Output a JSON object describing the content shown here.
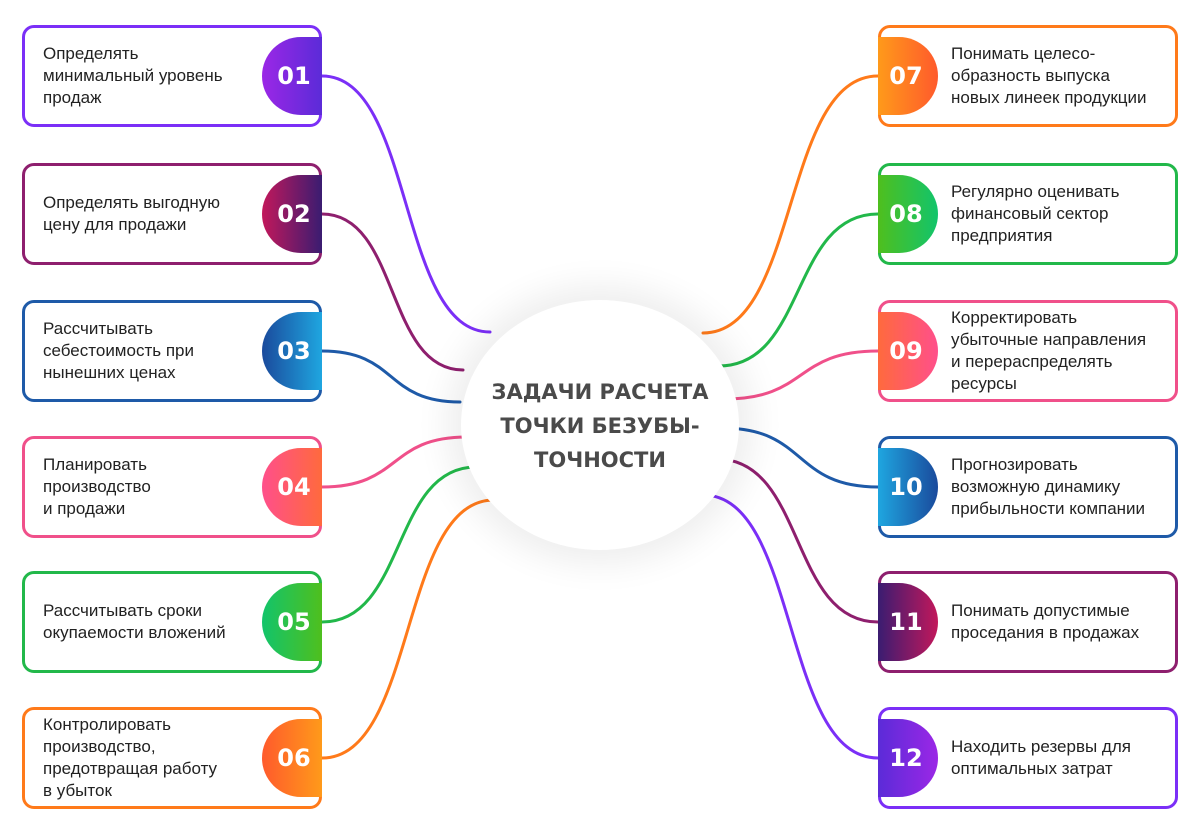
{
  "hub": {
    "title": "ЗАДАЧИ РАСЧЕТА\nТОЧКИ БЕЗУБЫ-\nТОЧНОСТИ"
  },
  "items": [
    {
      "number": "01",
      "text": "Определять\nминимальный уровень\nпродаж",
      "side": "left",
      "color": "#7b2ff7",
      "badge_gradient": [
        "#9b27e6",
        "#5b2bd8"
      ]
    },
    {
      "number": "02",
      "text": "Определять выгодную\nцену для продажи",
      "side": "left",
      "color": "#8e1f6e",
      "badge_gradient": [
        "#c2185b",
        "#3a1c71"
      ]
    },
    {
      "number": "03",
      "text": "Рассчитывать\nсебестоимость при\nнынешних ценах",
      "side": "left",
      "color": "#1e5aa8",
      "badge_gradient": [
        "#1a4a9c",
        "#1fa6e0"
      ]
    },
    {
      "number": "04",
      "text": "Планировать\nпроизводство\nи продажи",
      "side": "left",
      "color": "#f0508a",
      "badge_gradient": [
        "#ff4f8b",
        "#ff6a3d"
      ]
    },
    {
      "number": "05",
      "text": "Рассчитывать сроки\nокупаемости вложений",
      "side": "left",
      "color": "#22b84a",
      "badge_gradient": [
        "#12c46b",
        "#4fbf1e"
      ]
    },
    {
      "number": "06",
      "text": "Контролировать\nпроизводство,\nпредотвращая работу\nв убыток",
      "side": "left",
      "color": "#ff7a1a",
      "badge_gradient": [
        "#ff5a2c",
        "#ff9a1a"
      ]
    },
    {
      "number": "07",
      "text": "Понимать целесо-\nобразность выпуска\nновых линеек продукции",
      "side": "right",
      "color": "#ff7a1a",
      "badge_gradient": [
        "#ff9a1a",
        "#ff5a2c"
      ]
    },
    {
      "number": "08",
      "text": "Регулярно оценивать\nфинансовый сектор\nпредприятия",
      "side": "right",
      "color": "#22b84a",
      "badge_gradient": [
        "#4fbf1e",
        "#12c46b"
      ]
    },
    {
      "number": "09",
      "text": "Корректировать\nубыточные направления\nи перераспределять\nресурсы",
      "side": "right",
      "color": "#f0508a",
      "badge_gradient": [
        "#ff6a3d",
        "#ff4f8b"
      ]
    },
    {
      "number": "10",
      "text": "Прогнозировать\nвозможную динамику\nприбыльности компании",
      "side": "right",
      "color": "#1e5aa8",
      "badge_gradient": [
        "#1fa6e0",
        "#1a4a9c"
      ]
    },
    {
      "number": "11",
      "text": "Понимать допустимые\nпроседания в продажах",
      "side": "right",
      "color": "#8e1f6e",
      "badge_gradient": [
        "#3a1c71",
        "#c2185b"
      ]
    },
    {
      "number": "12",
      "text": "Находить резервы для\nоптимальных затрат",
      "side": "right",
      "color": "#7b2ff7",
      "badge_gradient": [
        "#5b2bd8",
        "#9b27e6"
      ]
    }
  ]
}
